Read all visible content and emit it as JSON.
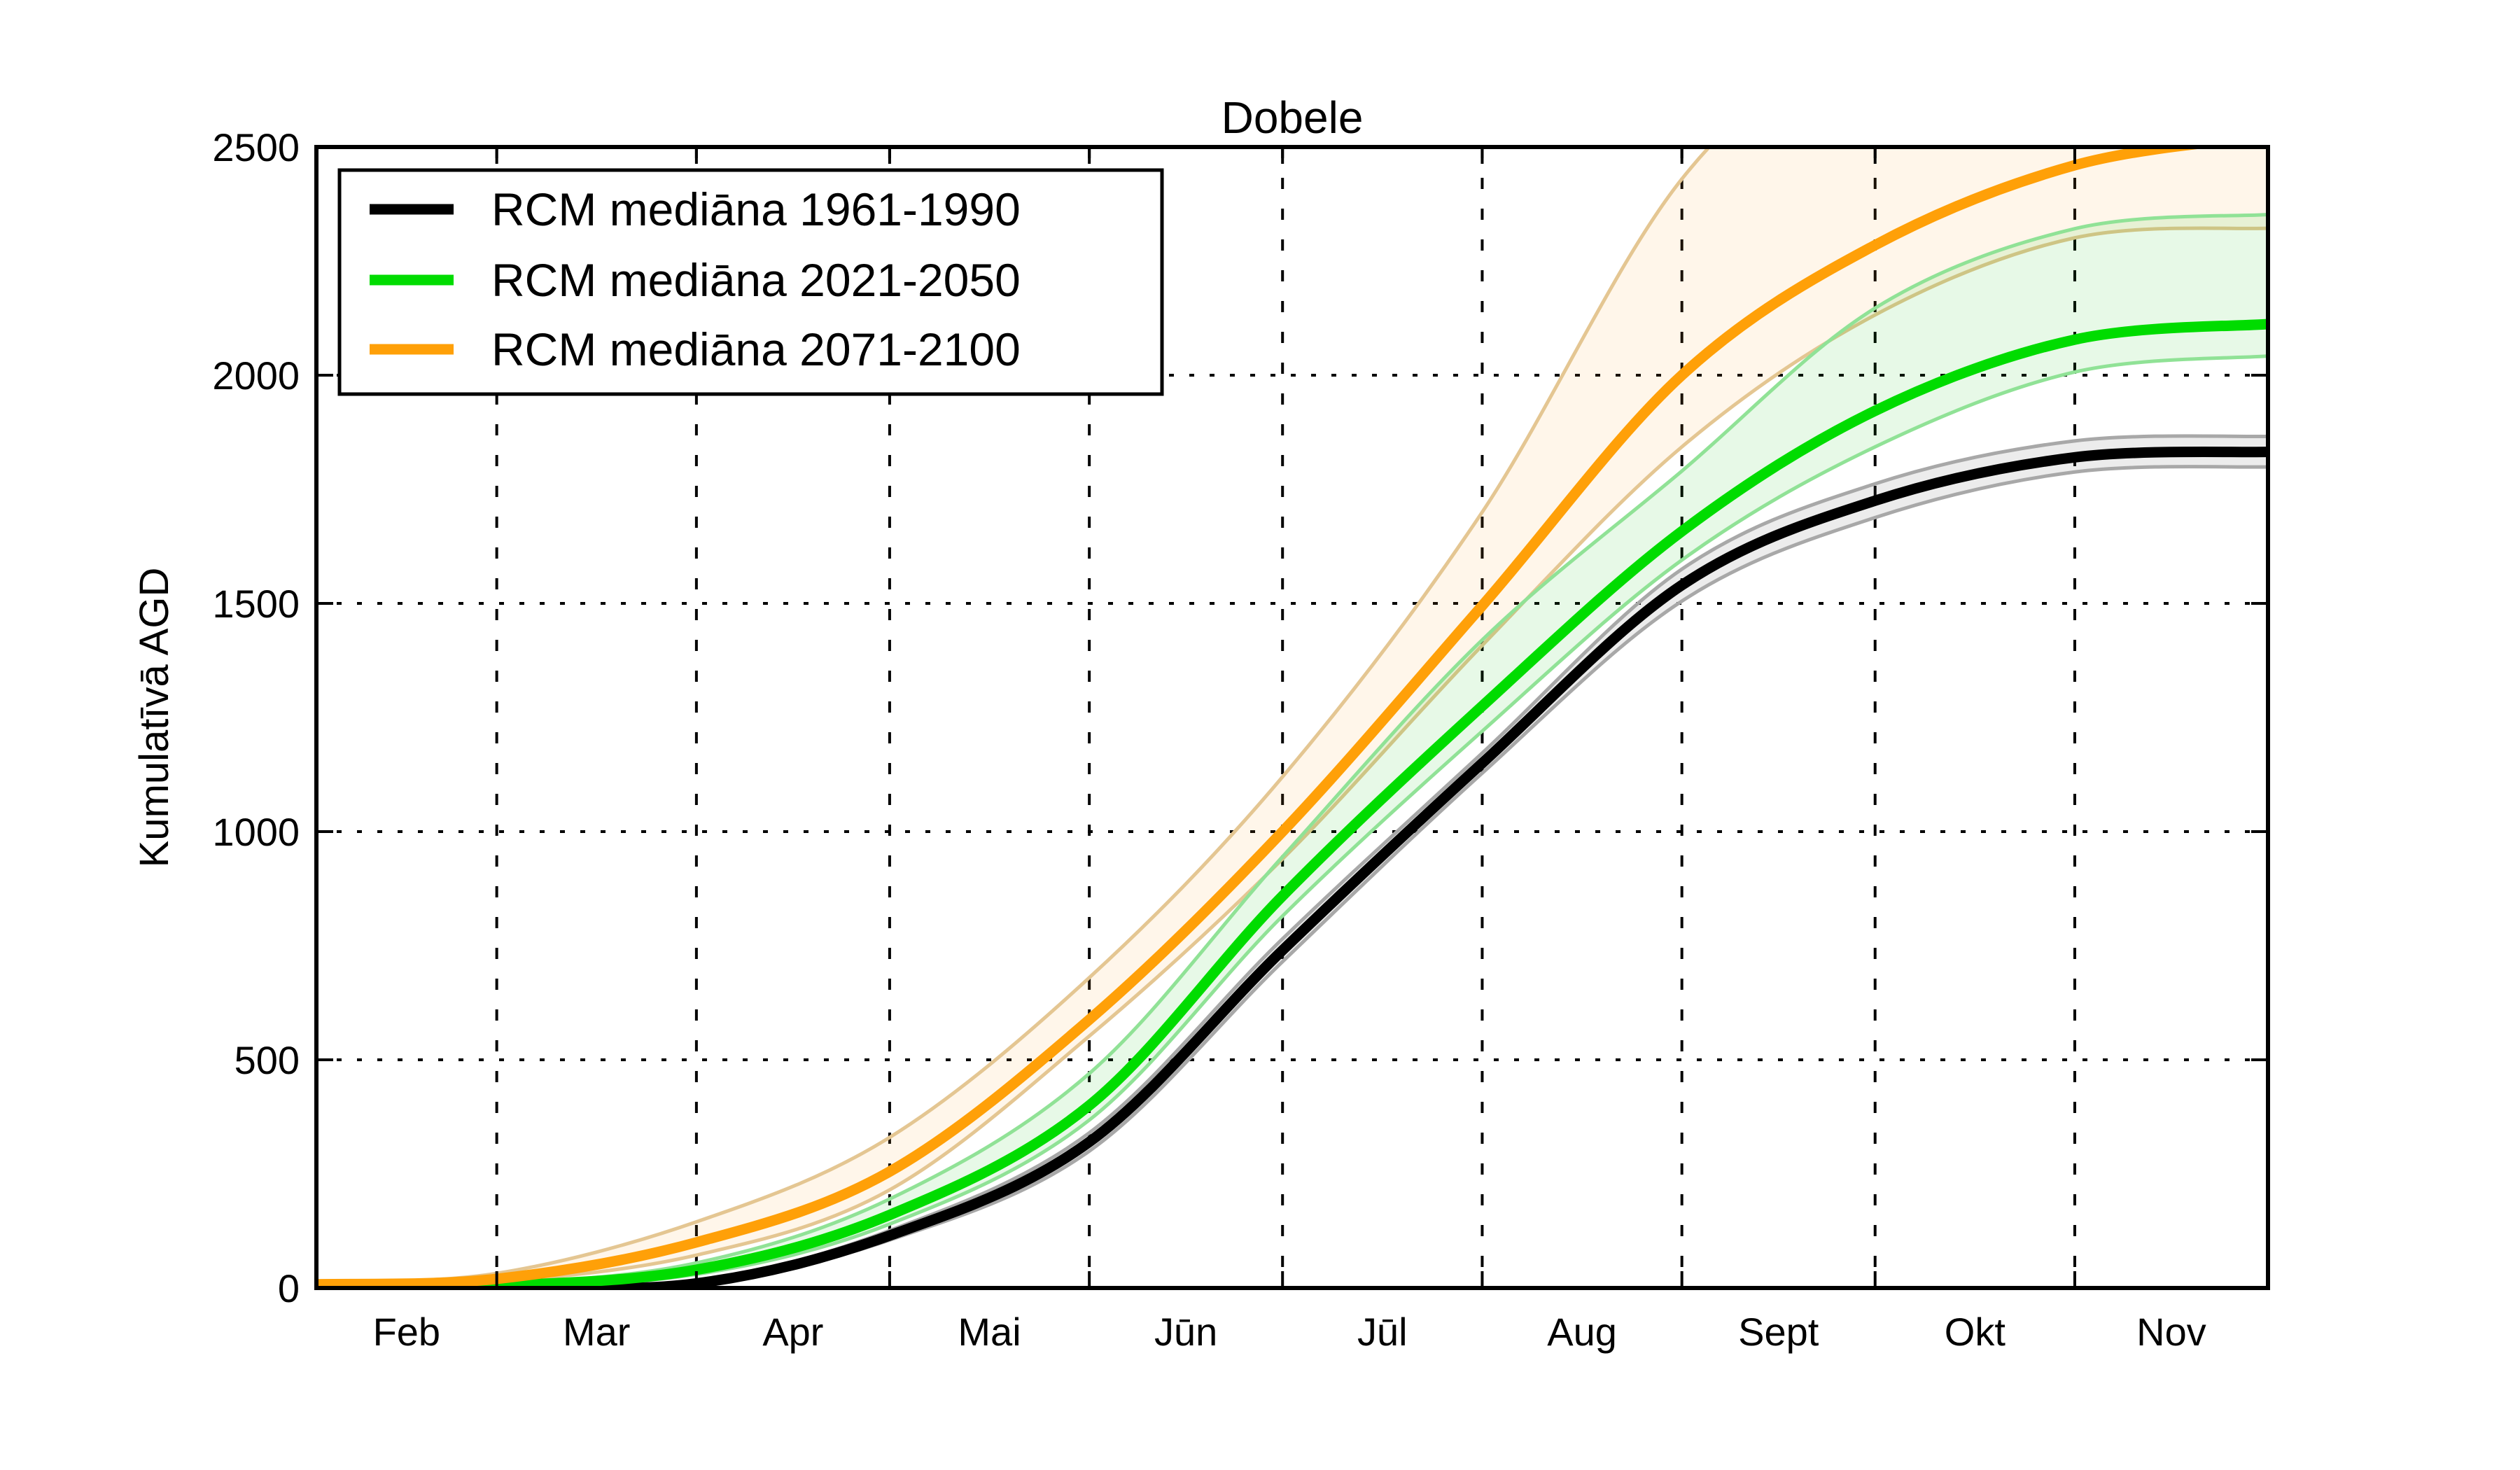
{
  "chart_data": {
    "type": "line",
    "title": "Dobele",
    "ylabel": "Kumulatīvā AGD",
    "xlabel": "",
    "ylim": [
      0,
      2500
    ],
    "y_ticks": [
      0,
      500,
      1000,
      1500,
      2000,
      2500
    ],
    "grid": true,
    "legend_position": "upper left",
    "x_unit": "days from Feb 1",
    "month_tick_days": [
      0,
      28,
      59,
      89,
      120,
      150,
      181,
      212,
      242,
      273,
      303
    ],
    "month_labels": [
      "Feb",
      "Mar",
      "Apr",
      "Mai",
      "Jūn",
      "Jūl",
      "Aug",
      "Sept",
      "Okt",
      "Nov"
    ],
    "month_label_days": [
      14,
      43.5,
      74,
      104.5,
      135,
      165.5,
      196.5,
      227,
      257.5,
      288
    ],
    "sample_days": [
      0,
      28,
      59,
      89,
      120,
      150,
      181,
      212,
      242,
      273,
      303
    ],
    "series": [
      {
        "name": "RCM mediāna 1961-1990",
        "color": "#000000",
        "band_edge": "#a8a8a8",
        "band_fill": "rgba(110,110,110,0.13)",
        "values": [
          0,
          2,
          10,
          115,
          320,
          740,
          1150,
          1540,
          1725,
          1820,
          1832
        ],
        "band_lo": [
          0,
          1,
          7,
          105,
          300,
          715,
          1128,
          1505,
          1688,
          1788,
          1799
        ],
        "band_hi": [
          0,
          3,
          14,
          126,
          340,
          765,
          1172,
          1575,
          1762,
          1856,
          1866
        ]
      },
      {
        "name": "RCM mediāna 2021-2050",
        "color": "#00dc00",
        "band_edge": "#90e296",
        "band_fill": "rgba(20,200,20,0.10)",
        "values": [
          1,
          5,
          40,
          160,
          400,
          859,
          1275,
          1658,
          1922,
          2078,
          2112
        ],
        "band_lo": [
          1,
          3,
          30,
          140,
          368,
          815,
          1220,
          1595,
          1843,
          2007,
          2042
        ],
        "band_hi": [
          2,
          8,
          55,
          195,
          470,
          945,
          1420,
          1790,
          2147,
          2321,
          2352
        ]
      },
      {
        "name": "RCM mediāna 2071-2100",
        "color": "#ffa008",
        "band_edge": "#e4c692",
        "band_fill": "rgba(255,166,50,0.10)",
        "values": [
          8,
          20,
          100,
          255,
          588,
          1000,
          1495,
          2000,
          2285,
          2460,
          2525
        ],
        "band_lo": [
          5,
          14,
          72,
          215,
          552,
          940,
          1408,
          1843,
          2132,
          2301,
          2322
        ],
        "band_hi": [
          12,
          32,
          145,
          330,
          680,
          1120,
          1700,
          2430,
          2780,
          2950,
          3020
        ]
      }
    ]
  }
}
